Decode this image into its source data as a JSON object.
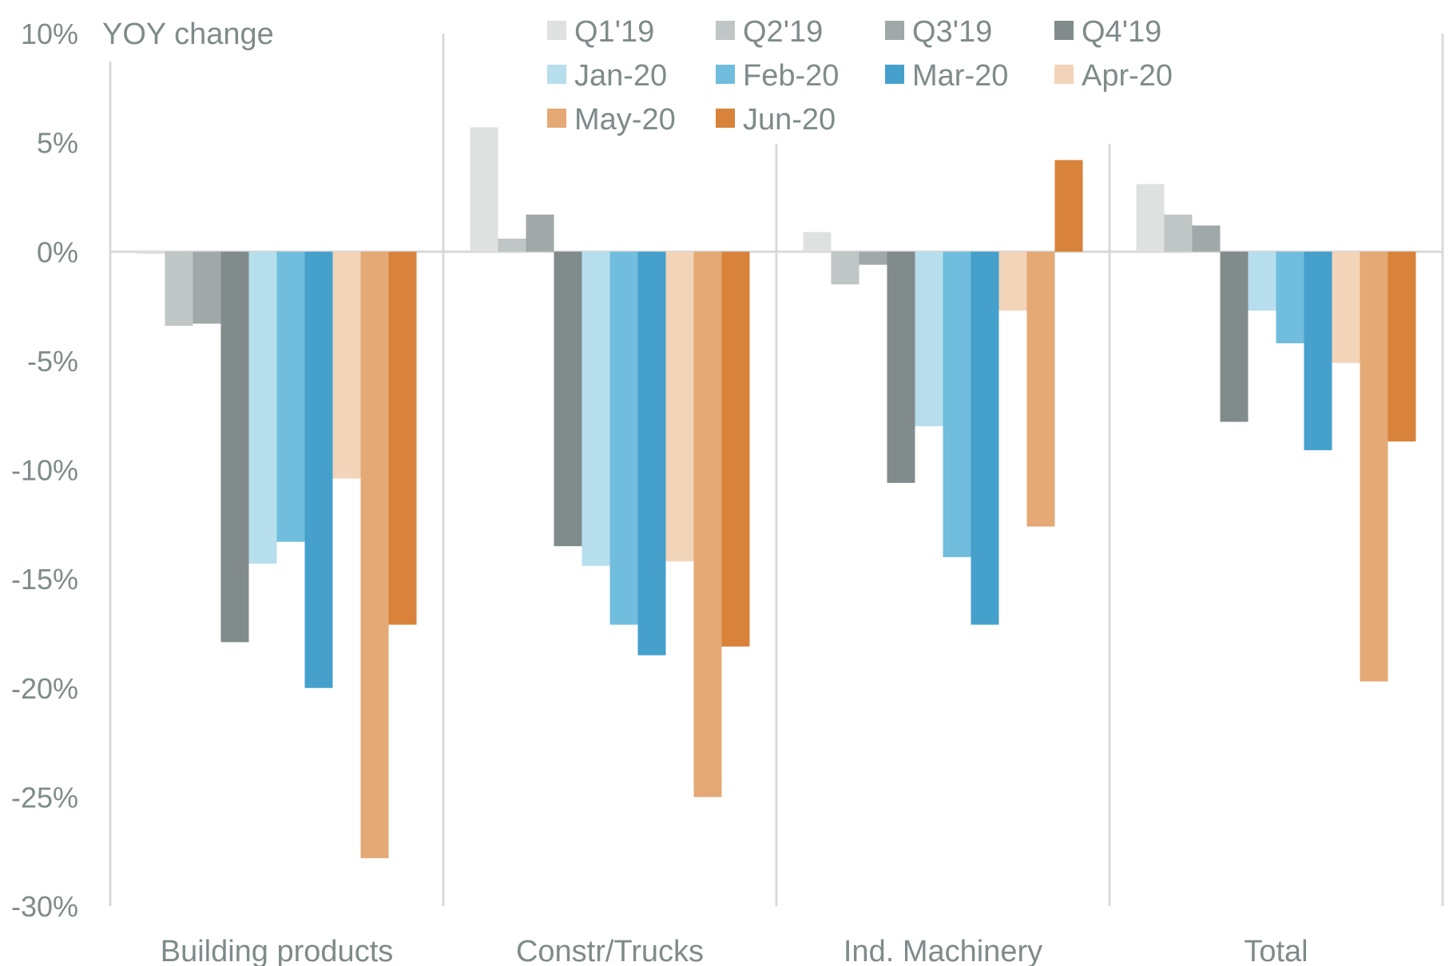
{
  "chart_data": {
    "type": "bar",
    "title": "YOY change",
    "xlabel": "",
    "ylabel": "YOY change",
    "ylim": [
      -30,
      10
    ],
    "y_ticks": [
      "10%",
      "5%",
      "0%",
      "-5%",
      "-10%",
      "-15%",
      "-20%",
      "-25%",
      "-30%"
    ],
    "y_tick_values": [
      10,
      5,
      0,
      -5,
      -10,
      -15,
      -20,
      -25,
      -30
    ],
    "grid": false,
    "legend_position": "top-right",
    "categories": [
      "Building products",
      "Constr/Trucks",
      "Ind. Machinery",
      "Total"
    ],
    "series": [
      {
        "name": "Q1'19",
        "color": "#dfe1e1",
        "values": [
          -0.1,
          5.7,
          0.9,
          3.1
        ]
      },
      {
        "name": "Q2'19",
        "color": "#c0c5c5",
        "values": [
          -3.4,
          0.6,
          -1.5,
          1.7
        ]
      },
      {
        "name": "Q3'19",
        "color": "#a1a8a9",
        "values": [
          -3.3,
          1.7,
          -0.6,
          1.2
        ]
      },
      {
        "name": "Q4'19",
        "color": "#818b8b",
        "values": [
          -17.9,
          -13.5,
          -10.6,
          -7.8
        ]
      },
      {
        "name": "Jan-20",
        "color": "#b6deed",
        "values": [
          -14.3,
          -14.4,
          -8.0,
          -2.7
        ]
      },
      {
        "name": "Feb-20",
        "color": "#70bddd",
        "values": [
          -13.3,
          -17.1,
          -14.0,
          -4.2
        ]
      },
      {
        "name": "Mar-20",
        "color": "#45a0cc",
        "values": [
          -20.0,
          -18.5,
          -17.1,
          -9.1
        ]
      },
      {
        "name": "Apr-20",
        "color": "#f2d4b9",
        "values": [
          -10.4,
          -14.2,
          -2.7,
          -5.1
        ]
      },
      {
        "name": "May-20",
        "color": "#e4a974",
        "values": [
          -27.8,
          -25.0,
          -12.6,
          -19.7
        ]
      },
      {
        "name": "Jun-20",
        "color": "#d9823b",
        "values": [
          -17.1,
          -18.1,
          4.2,
          -8.7
        ]
      }
    ]
  }
}
